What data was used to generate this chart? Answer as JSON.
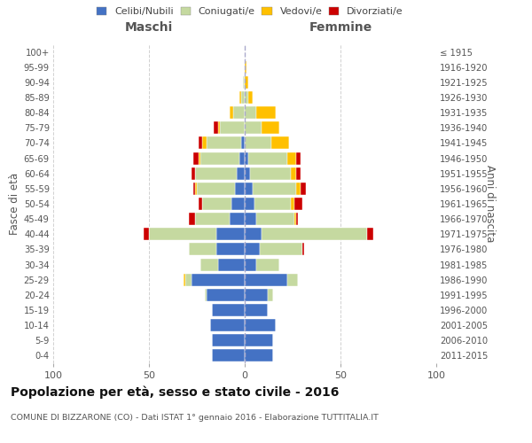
{
  "age_groups": [
    "0-4",
    "5-9",
    "10-14",
    "15-19",
    "20-24",
    "25-29",
    "30-34",
    "35-39",
    "40-44",
    "45-49",
    "50-54",
    "55-59",
    "60-64",
    "65-69",
    "70-74",
    "75-79",
    "80-84",
    "85-89",
    "90-94",
    "95-99",
    "100+"
  ],
  "birth_years": [
    "2011-2015",
    "2006-2010",
    "2001-2005",
    "1996-2000",
    "1991-1995",
    "1986-1990",
    "1981-1985",
    "1976-1980",
    "1971-1975",
    "1966-1970",
    "1961-1965",
    "1956-1960",
    "1951-1955",
    "1946-1950",
    "1941-1945",
    "1936-1940",
    "1931-1935",
    "1926-1930",
    "1921-1925",
    "1916-1920",
    "≤ 1915"
  ],
  "male": {
    "celibi": [
      17,
      17,
      18,
      17,
      20,
      28,
      14,
      15,
      15,
      8,
      7,
      5,
      4,
      3,
      2,
      0,
      0,
      0,
      0,
      0,
      0
    ],
    "coniugati": [
      0,
      0,
      0,
      0,
      1,
      3,
      9,
      14,
      35,
      18,
      15,
      20,
      22,
      20,
      18,
      13,
      6,
      2,
      1,
      0,
      0
    ],
    "vedovi": [
      0,
      0,
      0,
      0,
      0,
      1,
      0,
      0,
      0,
      0,
      0,
      1,
      0,
      1,
      2,
      1,
      2,
      1,
      0,
      0,
      0
    ],
    "divorziati": [
      0,
      0,
      0,
      0,
      0,
      0,
      0,
      0,
      3,
      3,
      2,
      1,
      2,
      3,
      2,
      2,
      0,
      0,
      0,
      0,
      0
    ]
  },
  "female": {
    "nubili": [
      15,
      15,
      16,
      12,
      12,
      22,
      6,
      8,
      9,
      6,
      5,
      4,
      3,
      2,
      0,
      0,
      0,
      0,
      0,
      0,
      0
    ],
    "coniugate": [
      0,
      0,
      0,
      0,
      3,
      6,
      12,
      22,
      55,
      20,
      19,
      23,
      21,
      20,
      14,
      9,
      6,
      2,
      0,
      0,
      0
    ],
    "vedove": [
      0,
      0,
      0,
      0,
      0,
      0,
      0,
      0,
      0,
      1,
      2,
      2,
      3,
      5,
      9,
      9,
      10,
      2,
      2,
      1,
      0
    ],
    "divorziate": [
      0,
      0,
      0,
      0,
      0,
      0,
      0,
      1,
      3,
      1,
      4,
      3,
      2,
      2,
      0,
      0,
      0,
      0,
      0,
      0,
      0
    ]
  },
  "colors": {
    "celibi": "#4472c4",
    "coniugati": "#c5d9a0",
    "vedovi": "#ffc000",
    "divorziati": "#cc0000"
  },
  "title": "Popolazione per età, sesso e stato civile - 2016",
  "subtitle": "COMUNE DI BIZZARONE (CO) - Dati ISTAT 1° gennaio 2016 - Elaborazione TUTTITALIA.IT",
  "xlabel_left": "Maschi",
  "xlabel_right": "Femmine",
  "ylabel_left": "Fasce di età",
  "ylabel_right": "Anni di nascita",
  "xlim": 100,
  "legend_labels": [
    "Celibi/Nubili",
    "Coniugati/e",
    "Vedovi/e",
    "Divorziati/e"
  ],
  "bg_color": "#ffffff",
  "grid_color": "#cccccc"
}
